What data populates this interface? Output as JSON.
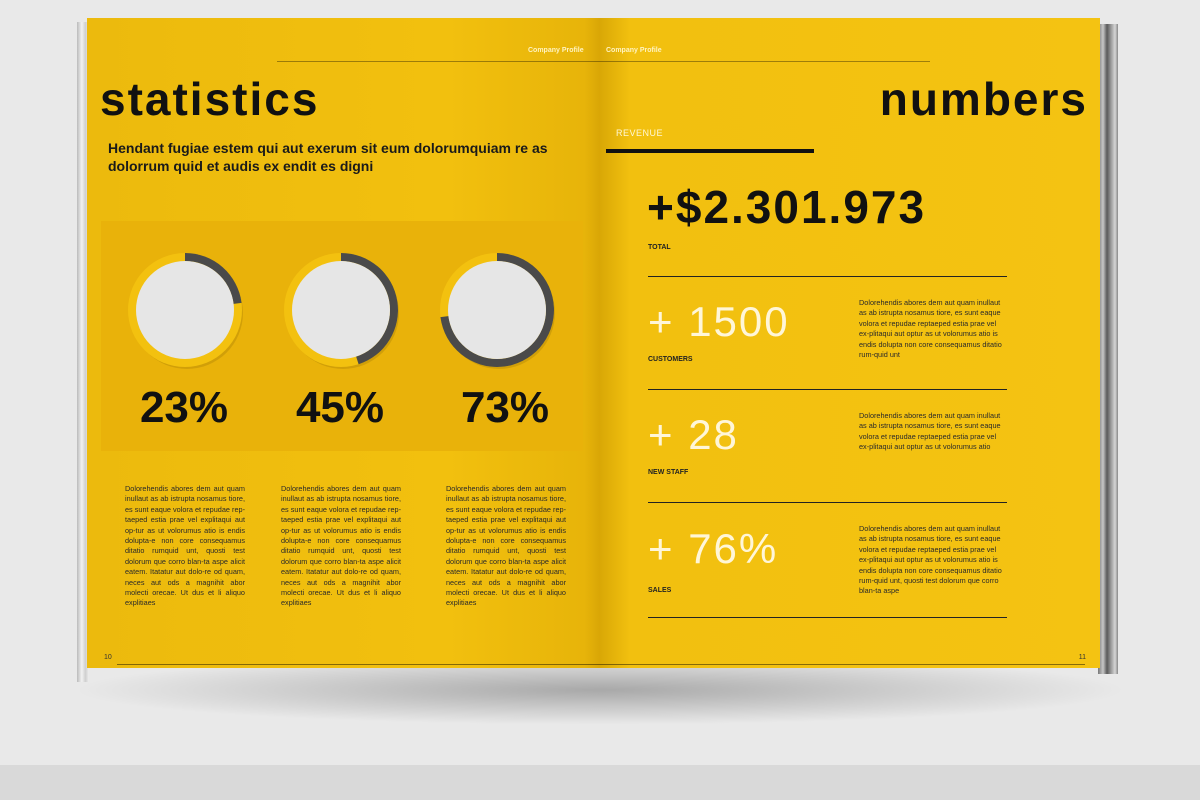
{
  "header": {
    "left_running_head": "Company Profile",
    "right_running_head": "Company Profile"
  },
  "left_page": {
    "title": "statistics",
    "subtitle": "Hendant fugiae estem qui aut exerum sit eum dolorumquiam re as dolorrum quid et audis ex endit es digni",
    "charts": [
      {
        "label": "23%",
        "percent": 23,
        "body": "Dolorehendis abores dem aut quam inullaut as ab istrupta nosamus tiore, es sunt eaque volora et repudae rep-taeped estia prae vel explitaqui aut op-tur as ut volorumus atio is endis dolupta-e non core consequamus ditatio rumquid unt, quosti test dolorum que corro blan-ta aspe alicit eatem. Itatatur aut dolo-re od quam, neces aut ods a magnihit abor molecti orecae. Ut dus et li aliquo explitiaes"
      },
      {
        "label": "45%",
        "percent": 45,
        "body": "Dolorehendis abores dem aut quam inullaut as ab istrupta nosamus tiore, es sunt eaque volora et repudae rep-taeped estia prae vel explitaqui aut op-tur as ut volorumus atio is endis dolupta-e non core consequamus ditatio rumquid unt, quosti test dolorum que corro blan-ta aspe alicit eatem. Itatatur aut dolo-re od quam, neces aut ods a magnihit abor molecti orecae. Ut dus et li aliquo explitiaes"
      },
      {
        "label": "73%",
        "percent": 73,
        "body": "Dolorehendis abores dem aut quam inullaut as ab istrupta nosamus tiore, es sunt eaque volora et repudae rep-taeped estia prae vel explitaqui aut op-tur as ut volorumus atio is endis dolupta-e non core consequamus ditatio rumquid unt, quosti test dolorum que corro blan-ta aspe alicit eatem. Itatatur aut dolo-re od quam, neces aut ods a magnihit abor molecti orecae. Ut dus et li aliquo explitiaes"
      }
    ],
    "page_number": "10"
  },
  "right_page": {
    "title": "numbers",
    "revenue_label": "REVENUE",
    "total_value": "+$2.301.973",
    "total_label": "TOTAL",
    "stats": [
      {
        "value": "+ 1500",
        "label": "CUSTOMERS",
        "desc": "Dolorehendis abores dem aut quam inullaut as ab istrupta nosamus tiore, es sunt eaque volora et repudae reptaeped estia prae vel ex-plitaqui aut optur as ut volorumus atio is endis dolupta non core consequamus ditatio rum-quid unt"
      },
      {
        "value": "+ 28",
        "label": "NEW STAFF",
        "desc": "Dolorehendis abores dem aut quam inullaut as ab istrupta nosamus tiore, es sunt eaque volora et repudae reptaeped estia prae vel ex-plitaqui aut optur as ut volorumus atio"
      },
      {
        "value": "+ 76%",
        "label": "SALES",
        "desc": "Dolorehendis abores dem aut quam inullaut as ab istrupta nosamus tiore, es sunt eaque volora et repudae reptaeped estia prae vel ex-plitaqui aut optur as ut volorumus atio is endis dolupta non core consequamus ditatio rum-quid unt, quosti test dolorum que corro blan-ta aspe"
      }
    ],
    "page_number": "11"
  },
  "colors": {
    "page_yellow": "#f3c10f",
    "panel_yellow": "#e9b20a",
    "ring_gray": "#4a4a4a",
    "circle_fill": "#e6e6e6",
    "ink": "#111111",
    "light_text": "#fff6d8"
  }
}
